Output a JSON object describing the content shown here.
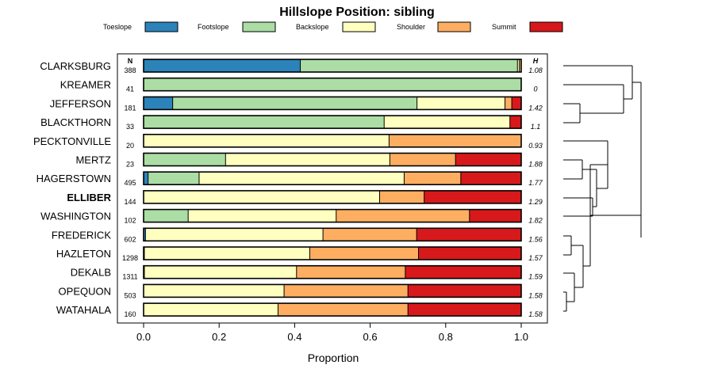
{
  "chart_data": {
    "type": "bar",
    "subtype": "stacked-horizontal-proportion",
    "title": "Hillslope Position: sibling",
    "xlabel": "Proportion",
    "ylabel": "",
    "xlim": [
      0,
      1
    ],
    "xticks": [
      "0.0",
      "0.2",
      "0.4",
      "0.6",
      "0.8",
      "1.0"
    ],
    "xtick_values": [
      0,
      0.2,
      0.4,
      0.6,
      0.8,
      1.0
    ],
    "legend_position": "top",
    "n_header": "N",
    "h_header": "H",
    "series": [
      {
        "name": "Toeslope",
        "color": "#2b83ba"
      },
      {
        "name": "Footslope",
        "color": "#abdda4"
      },
      {
        "name": "Backslope",
        "color": "#ffffbf"
      },
      {
        "name": "Shoulder",
        "color": "#fdae61"
      },
      {
        "name": "Summit",
        "color": "#d7191c"
      }
    ],
    "categories": [
      {
        "name": "CLARKSBURG",
        "n": "388",
        "h": "1.08",
        "bold": false,
        "values": [
          0.415,
          0.575,
          0.005,
          0.005,
          0.0
        ]
      },
      {
        "name": "KREAMER",
        "n": "41",
        "h": "0",
        "bold": false,
        "values": [
          0.0,
          1.0,
          0.0,
          0.0,
          0.0
        ]
      },
      {
        "name": "JEFFERSON",
        "n": "181",
        "h": "1.42",
        "bold": false,
        "values": [
          0.077,
          0.647,
          0.233,
          0.018,
          0.025
        ]
      },
      {
        "name": "BLACKTHORN",
        "n": "33",
        "h": "1.1",
        "bold": false,
        "values": [
          0.0,
          0.637,
          0.333,
          0.0,
          0.03
        ]
      },
      {
        "name": "PECKTONVILLE",
        "n": "20",
        "h": "0.93",
        "bold": false,
        "values": [
          0.0,
          0.0,
          0.65,
          0.35,
          0.0
        ]
      },
      {
        "name": "MERTZ",
        "n": "23",
        "h": "1.88",
        "bold": false,
        "values": [
          0.0,
          0.217,
          0.435,
          0.174,
          0.174
        ]
      },
      {
        "name": "HAGERSTOWN",
        "n": "495",
        "h": "1.77",
        "bold": false,
        "values": [
          0.012,
          0.135,
          0.543,
          0.15,
          0.16
        ]
      },
      {
        "name": "ELLIBER",
        "n": "144",
        "h": "1.29",
        "bold": true,
        "values": [
          0.0,
          0.0,
          0.625,
          0.118,
          0.257
        ]
      },
      {
        "name": "WASHINGTON",
        "n": "102",
        "h": "1.82",
        "bold": false,
        "values": [
          0.0,
          0.118,
          0.392,
          0.353,
          0.137
        ]
      },
      {
        "name": "FREDERICK",
        "n": "602",
        "h": "1.56",
        "bold": false,
        "values": [
          0.005,
          0.0,
          0.47,
          0.248,
          0.277
        ]
      },
      {
        "name": "HAZLETON",
        "n": "1298",
        "h": "1.57",
        "bold": false,
        "values": [
          0.002,
          0.0,
          0.438,
          0.288,
          0.272
        ]
      },
      {
        "name": "DEKALB",
        "n": "1311",
        "h": "1.59",
        "bold": false,
        "values": [
          0.002,
          0.0,
          0.403,
          0.288,
          0.307
        ]
      },
      {
        "name": "OPEQUON",
        "n": "503",
        "h": "1.58",
        "bold": false,
        "values": [
          0.0,
          0.0,
          0.372,
          0.328,
          0.3
        ]
      },
      {
        "name": "WATAHALA",
        "n": "160",
        "h": "1.58",
        "bold": false,
        "values": [
          0.0,
          0.0,
          0.356,
          0.344,
          0.3
        ]
      }
    ]
  }
}
